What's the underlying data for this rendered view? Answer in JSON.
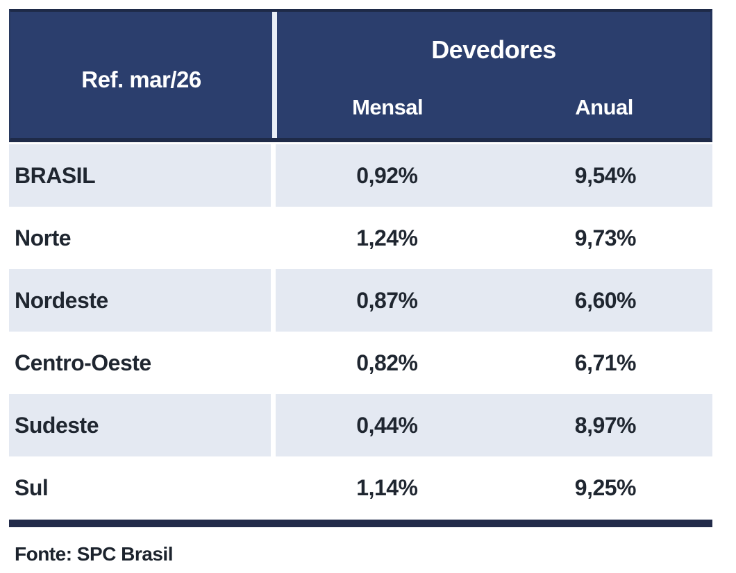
{
  "chart_data": {
    "type": "table",
    "ref_label": "Ref. mar/26",
    "group_header": "Devedores",
    "columns": [
      "Mensal",
      "Anual"
    ],
    "rows": [
      {
        "region": "BRASIL",
        "mensal": "0,92%",
        "anual": "9,54%"
      },
      {
        "region": "Norte",
        "mensal": "1,24%",
        "anual": "9,73%"
      },
      {
        "region": "Nordeste",
        "mensal": "0,87%",
        "anual": "6,60%"
      },
      {
        "region": "Centro-Oeste",
        "mensal": "0,82%",
        "anual": "6,71%"
      },
      {
        "region": "Sudeste",
        "mensal": "0,44%",
        "anual": "8,97%"
      },
      {
        "region": "Sul",
        "mensal": "1,14%",
        "anual": "9,25%"
      }
    ],
    "values_numeric": {
      "mensal": [
        0.92,
        1.24,
        0.87,
        0.82,
        0.44,
        1.14
      ],
      "anual": [
        9.54,
        9.73,
        6.6,
        6.71,
        8.97,
        9.25
      ]
    },
    "source": "Fonte: SPC Brasil",
    "layout_hints": {
      "striped_rows": true,
      "stripe_order": "first-row-shaded"
    }
  },
  "colors": {
    "header_bg": "#2B3E6D",
    "header_border": "#1E2A48",
    "header_text": "#FFFFFF",
    "stripe_row_bg": "#E4E9F2",
    "white_row_bg": "#FFFFFF",
    "bottom_rule": "#222B4A",
    "body_text": "#1F2630"
  }
}
